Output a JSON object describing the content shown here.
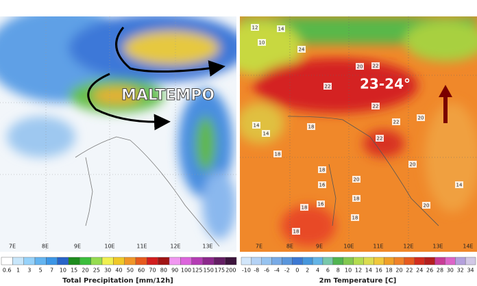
{
  "left_panel": {
    "annotation": "MALTEMPO",
    "longitudes": [
      "7E",
      "8E",
      "9E",
      "10E",
      "11E",
      "12E",
      "13E"
    ],
    "colorbar": {
      "labels": [
        "0.6",
        "1",
        "3",
        "5",
        "7",
        "10",
        "15",
        "20",
        "25",
        "30",
        "40",
        "50",
        "60",
        "70",
        "80",
        "90",
        "100",
        "125",
        "150",
        "175",
        "200"
      ],
      "title": "Total Precipitation [mm/12h]"
    }
  },
  "right_panel": {
    "annotation": "23-24°",
    "longitudes": [
      "7E",
      "8E",
      "9E",
      "10E",
      "11E",
      "12E",
      "13E",
      "14E"
    ],
    "point_labels": [
      "12",
      "14",
      "10",
      "24",
      "20",
      "22",
      "22",
      "22",
      "22",
      "20",
      "14",
      "14",
      "18",
      "18",
      "22",
      "20",
      "18",
      "20",
      "16",
      "16",
      "18",
      "18",
      "18",
      "20",
      "18",
      "14"
    ],
    "colorbar": {
      "labels": [
        "-10",
        "-8",
        "-6",
        "-4",
        "-2",
        "0",
        "2",
        "4",
        "6",
        "8",
        "10",
        "12",
        "14",
        "16",
        "18",
        "20",
        "22",
        "24",
        "26",
        "28",
        "30",
        "32",
        "34"
      ],
      "title": "2m Temperature [C]"
    }
  }
}
